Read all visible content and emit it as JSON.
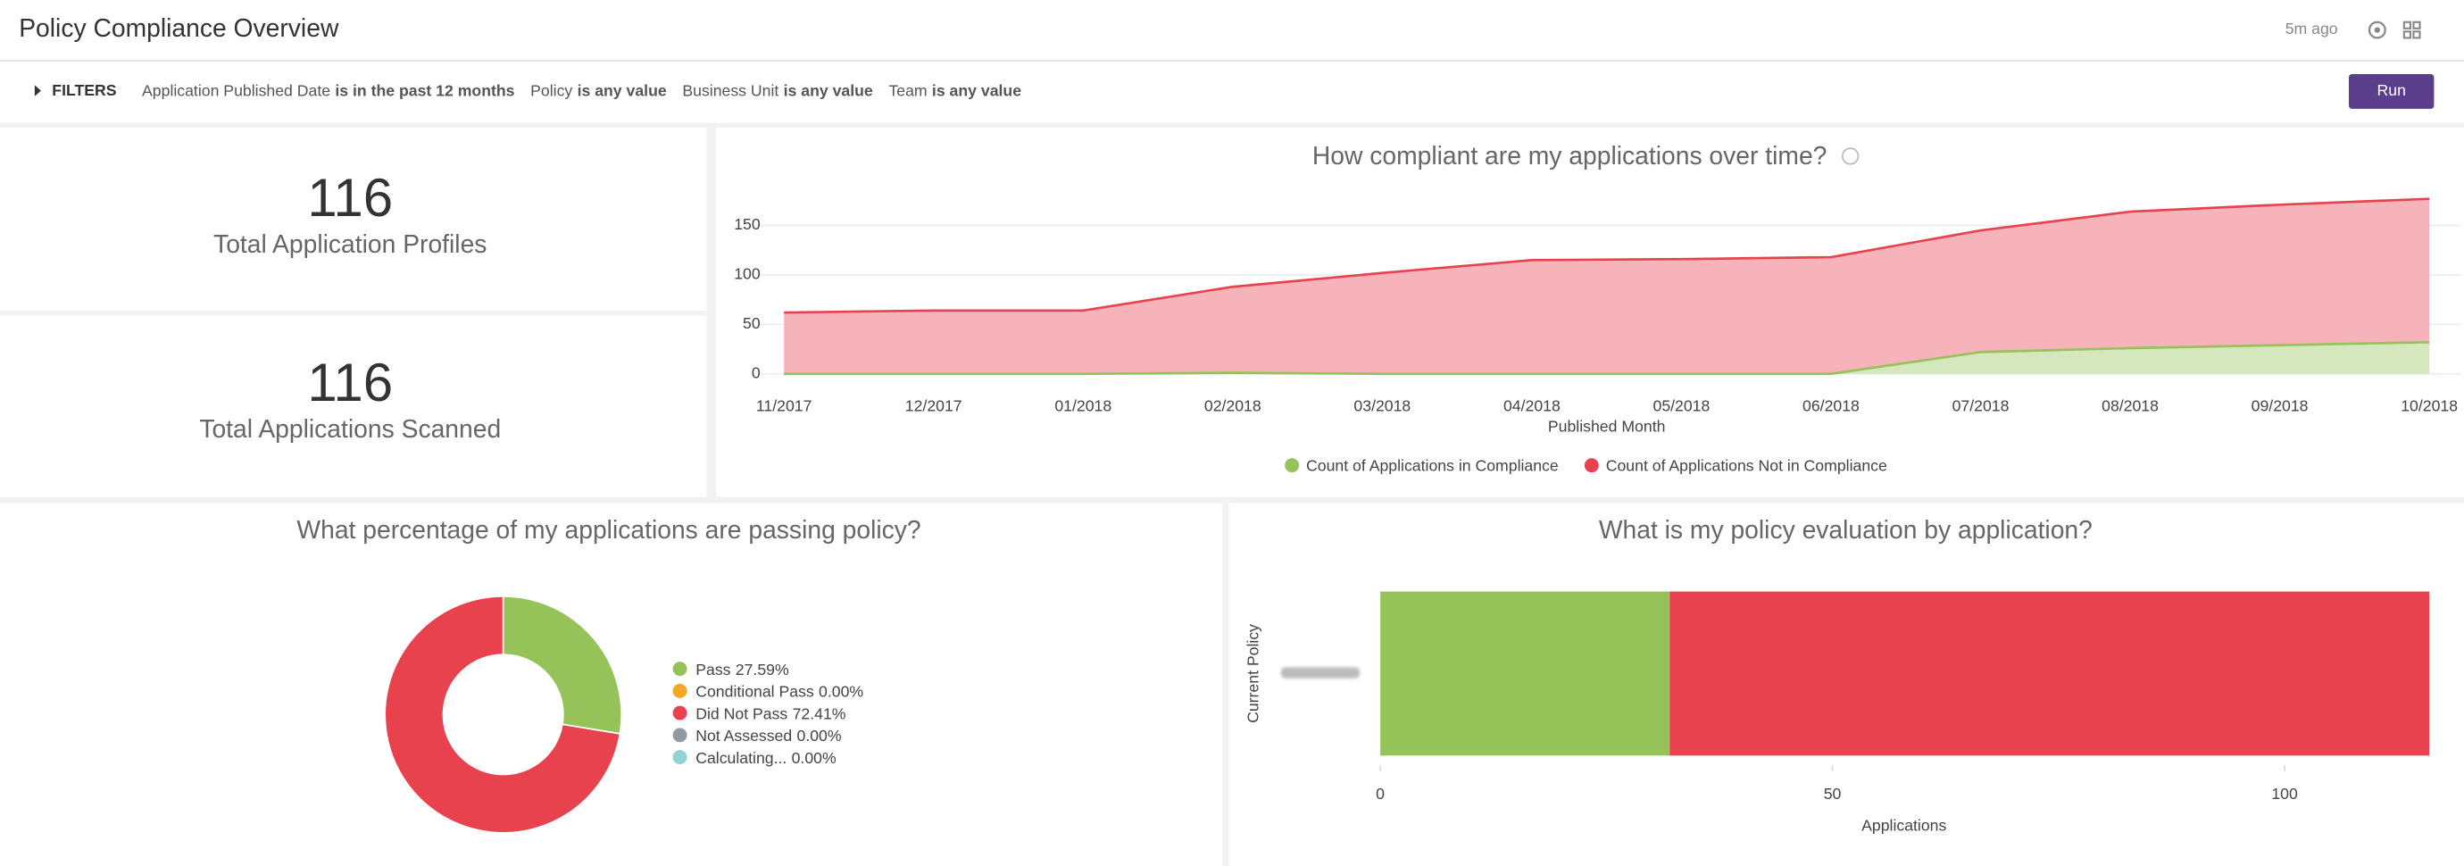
{
  "header": {
    "title": "Policy Compliance Overview",
    "updated": "5m ago"
  },
  "filters": {
    "label": "FILTERS",
    "items": [
      {
        "field": "Application Published Date",
        "condition": "is in the past 12 months"
      },
      {
        "field": "Policy",
        "condition": "is any value"
      },
      {
        "field": "Business Unit",
        "condition": "is any value"
      },
      {
        "field": "Team",
        "condition": "is any value"
      }
    ],
    "button": "Run"
  },
  "kpis": [
    {
      "value": 116,
      "label": "Total Application Profiles"
    },
    {
      "value": 116,
      "label": "Total Applications Scanned"
    }
  ],
  "chart_data": [
    {
      "type": "area",
      "title": "How compliant are my applications over time?",
      "x_label": "Published Month",
      "categories": [
        "11/2017",
        "12/2017",
        "01/2018",
        "02/2018",
        "03/2018",
        "04/2018",
        "05/2018",
        "06/2018",
        "07/2018",
        "08/2018",
        "09/2018",
        "10/2018"
      ],
      "series": [
        {
          "name": "Count of Applications in Compliance",
          "color": "#96c25a",
          "values": [
            0,
            0,
            0,
            1,
            0,
            0,
            0,
            0,
            22,
            26,
            29,
            32
          ]
        },
        {
          "name": "Count of Applications Not in Compliance",
          "color": "#e8424f",
          "values": [
            62,
            64,
            64,
            88,
            102,
            115,
            116,
            118,
            145,
            164,
            171,
            177
          ]
        }
      ],
      "ylim": [
        0,
        185
      ],
      "yticks": [
        0,
        50,
        100,
        150
      ],
      "grid": true
    },
    {
      "type": "pie",
      "title": "What percentage of my applications are passing policy?",
      "categories": [
        "Pass",
        "Conditional Pass",
        "Did Not Pass",
        "Not Assessed",
        "Calculating..."
      ],
      "values": [
        27.59,
        0,
        72.41,
        0,
        0
      ],
      "value_labels": [
        "27.59%",
        "0.00%",
        "72.41%",
        "0.00%",
        "0.00%"
      ],
      "colors": [
        "#96c25a",
        "#f5a623",
        "#e8424f",
        "#8e9ba0",
        "#8fd3d6"
      ]
    },
    {
      "type": "bar",
      "orientation": "horizontal",
      "stacked": true,
      "title": "What is my policy evaluation by application?",
      "x_label": "Applications",
      "y_label": "Current Policy",
      "categories": [
        null
      ],
      "series": [
        {
          "color": "#96c25a",
          "values": [
            32
          ]
        },
        {
          "color": "#e8424f",
          "values": [
            84
          ]
        }
      ],
      "xlim": [
        0,
        116
      ],
      "xticks": [
        0,
        50,
        100
      ]
    }
  ]
}
